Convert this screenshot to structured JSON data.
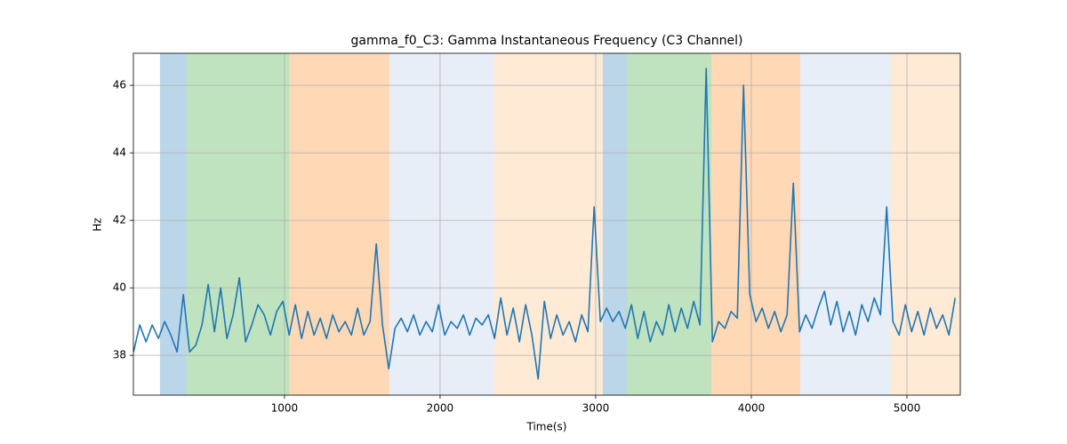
{
  "chart_data": {
    "type": "line",
    "title": "gamma_f0_C3: Gamma Instantaneous Frequency (C3 Channel)",
    "xlabel": "Time(s)",
    "ylabel": "Hz",
    "xlim": [
      29,
      5343
    ],
    "ylim": [
      36.82,
      46.95
    ],
    "xticks": [
      1000,
      2000,
      3000,
      4000,
      5000
    ],
    "yticks": [
      38,
      40,
      42,
      44,
      46
    ],
    "grid": true,
    "spans": [
      {
        "x0": 200,
        "x1": 371,
        "color": "rgba(31,119,180,0.3)"
      },
      {
        "x0": 371,
        "x1": 1029,
        "color": "rgba(44,160,44,0.3)"
      },
      {
        "x0": 1029,
        "x1": 1674,
        "color": "rgba(255,127,14,0.3)"
      },
      {
        "x0": 1674,
        "x1": 2349,
        "color": "rgba(174,199,232,0.3)"
      },
      {
        "x0": 2349,
        "x1": 3046,
        "color": "rgba(255,187,120,0.3)"
      },
      {
        "x0": 3046,
        "x1": 3200,
        "color": "rgba(31,119,180,0.3)"
      },
      {
        "x0": 3200,
        "x1": 3743,
        "color": "rgba(44,160,44,0.3)"
      },
      {
        "x0": 3743,
        "x1": 4314,
        "color": "rgba(255,127,14,0.3)"
      },
      {
        "x0": 4314,
        "x1": 4897,
        "color": "rgba(174,199,232,0.3)"
      },
      {
        "x0": 4897,
        "x1": 5343,
        "color": "rgba(255,187,120,0.3)"
      }
    ],
    "color": "#1f77b4",
    "x": [
      30,
      70,
      110,
      150,
      190,
      230,
      270,
      310,
      350,
      390,
      430,
      470,
      510,
      550,
      590,
      630,
      670,
      710,
      750,
      790,
      830,
      870,
      910,
      950,
      990,
      1030,
      1070,
      1110,
      1150,
      1190,
      1230,
      1270,
      1310,
      1350,
      1390,
      1430,
      1470,
      1510,
      1550,
      1590,
      1630,
      1670,
      1710,
      1750,
      1790,
      1830,
      1870,
      1910,
      1950,
      1990,
      2030,
      2070,
      2110,
      2150,
      2190,
      2230,
      2270,
      2310,
      2350,
      2390,
      2430,
      2470,
      2510,
      2550,
      2590,
      2630,
      2670,
      2710,
      2750,
      2790,
      2830,
      2870,
      2910,
      2950,
      2990,
      3030,
      3070,
      3110,
      3150,
      3190,
      3230,
      3270,
      3310,
      3350,
      3390,
      3430,
      3470,
      3510,
      3550,
      3590,
      3630,
      3670,
      3710,
      3750,
      3790,
      3830,
      3870,
      3910,
      3950,
      3990,
      4030,
      4070,
      4110,
      4150,
      4190,
      4230,
      4270,
      4310,
      4350,
      4390,
      4430,
      4470,
      4510,
      4550,
      4590,
      4630,
      4670,
      4710,
      4750,
      4790,
      4830,
      4870,
      4910,
      4950,
      4990,
      5030,
      5070,
      5110,
      5150,
      5190,
      5230,
      5270,
      5310
    ],
    "values": [
      38.1,
      38.9,
      38.4,
      38.9,
      38.5,
      39.0,
      38.6,
      38.1,
      39.8,
      38.1,
      38.3,
      38.9,
      40.1,
      38.7,
      40.0,
      38.5,
      39.2,
      40.3,
      38.4,
      38.9,
      39.5,
      39.2,
      38.6,
      39.3,
      39.6,
      38.6,
      39.5,
      38.5,
      39.3,
      38.6,
      39.1,
      38.5,
      39.2,
      38.7,
      39.0,
      38.6,
      39.4,
      38.6,
      39.0,
      41.3,
      38.9,
      37.6,
      38.8,
      39.1,
      38.7,
      39.2,
      38.6,
      39.0,
      38.7,
      39.5,
      38.6,
      39.0,
      38.8,
      39.2,
      38.6,
      39.1,
      38.9,
      39.2,
      38.5,
      39.7,
      38.6,
      39.4,
      38.4,
      39.5,
      38.6,
      37.3,
      39.6,
      38.5,
      39.2,
      38.6,
      39.0,
      38.4,
      39.2,
      38.7,
      42.4,
      39.0,
      39.4,
      39.0,
      39.3,
      38.8,
      39.5,
      38.5,
      39.3,
      38.4,
      39.0,
      38.6,
      39.5,
      38.7,
      39.4,
      38.8,
      39.6,
      38.9,
      46.5,
      38.4,
      39.0,
      38.8,
      39.3,
      39.1,
      46.0,
      39.8,
      39.0,
      39.4,
      38.8,
      39.3,
      38.7,
      39.2,
      43.1,
      38.7,
      39.2,
      38.8,
      39.4,
      39.9,
      38.9,
      39.6,
      38.7,
      39.3,
      38.6,
      39.5,
      39.0,
      39.7,
      39.2,
      42.4,
      39.0,
      38.6,
      39.5,
      38.7,
      39.3,
      38.6,
      39.4,
      38.8,
      39.2,
      38.6,
      39.7
    ]
  }
}
